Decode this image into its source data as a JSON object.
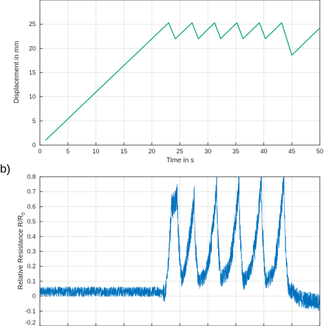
{
  "chart_data": [
    {
      "type": "line",
      "panel_label": "",
      "xlabel": "Time in s",
      "ylabel": "Displacement in mm",
      "xlim": [
        0,
        50
      ],
      "ylim": [
        0,
        30
      ],
      "xticks": [
        "0",
        "5",
        "10",
        "15",
        "20",
        "25",
        "30",
        "35",
        "40",
        "45",
        "50"
      ],
      "yticks": [
        "0",
        "5",
        "10",
        "15",
        "20",
        "25"
      ],
      "grid": true,
      "series": [
        {
          "color": "#1aa684",
          "x": [
            1,
            23,
            24.2,
            27.2,
            28.3,
            31.2,
            32.3,
            35.2,
            36.3,
            39.2,
            40.3,
            43.2,
            45,
            50
          ],
          "y": [
            1,
            25.3,
            22,
            25.3,
            22,
            25.3,
            22,
            25.3,
            22,
            25.3,
            22,
            25.3,
            18.6,
            24.2
          ]
        }
      ]
    },
    {
      "type": "line",
      "panel_label": "b)",
      "xlabel": "",
      "ylabel": "Relative Resistance R/R",
      "ylabel_subscript": "0",
      "xlim": [
        0,
        50
      ],
      "ylim": [
        -0.2,
        0.8
      ],
      "yticks": [
        "0.8",
        "0.7",
        "0.6",
        "0.5",
        "0.4",
        "0.3",
        "0.2",
        "0.1",
        "0",
        "-0.1",
        "-0.2"
      ],
      "grid": true,
      "series": [
        {
          "color": "#0072bd",
          "description_points": {
            "x": [
              0,
              21,
              22.3,
              23.5,
              24.6,
              25.3,
              27.6,
              28.3,
              29.5,
              31.6,
              32.3,
              33.5,
              35.6,
              36.3,
              37.5,
              39.6,
              40.3,
              41.5,
              43.6,
              44.3,
              46,
              50
            ],
            "y": [
              0.03,
              0.03,
              0.02,
              0.6,
              0.68,
              0.12,
              0.68,
              0.1,
              0.15,
              0.76,
              0.12,
              0.17,
              0.78,
              0.1,
              0.17,
              0.8,
              0.1,
              0.15,
              0.8,
              0.1,
              0.0,
              -0.04
            ]
          }
        }
      ]
    }
  ]
}
